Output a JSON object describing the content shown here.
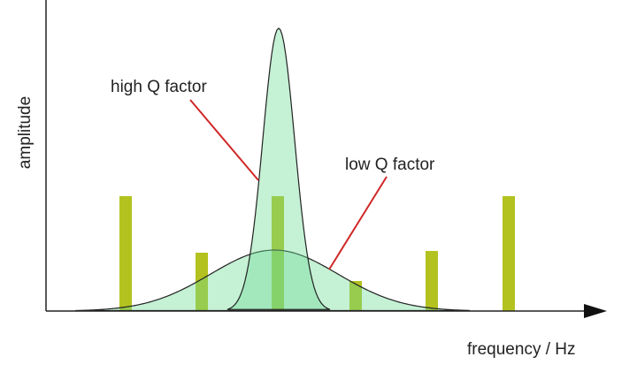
{
  "axes": {
    "y_label": "amplitude",
    "x_label": "frequency / Hz"
  },
  "annotations": [
    "high Q factor",
    "low Q factor"
  ]
}
